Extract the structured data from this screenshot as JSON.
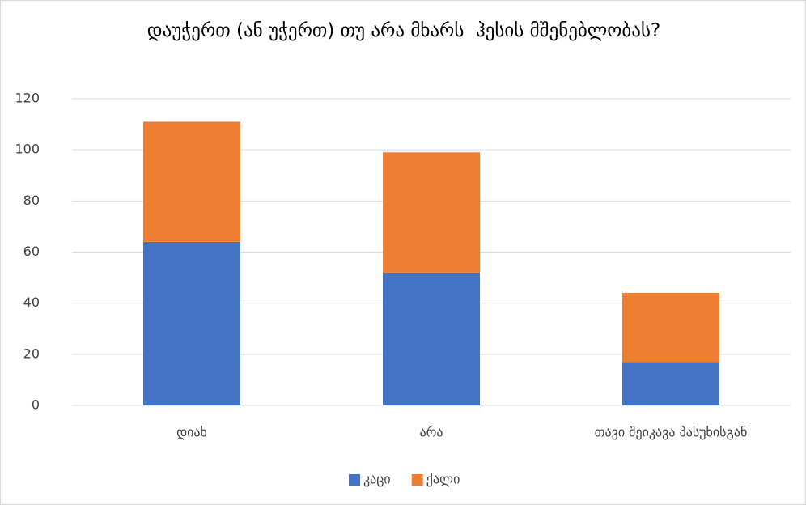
{
  "chart_data": {
    "type": "stacked_bar",
    "title": "დაუჭერთ (ან უჭერთ) თუ არა მხარს  ჰესის მშენებლობას?",
    "categories": [
      "დიახ",
      "არა",
      "თავი შეიკავა პასუხისგან"
    ],
    "series": [
      {
        "name": "კაცი",
        "color": "#4472c4",
        "values": [
          64,
          52,
          17
        ]
      },
      {
        "name": "ქალი",
        "color": "#ed7d31",
        "values": [
          47,
          47,
          27
        ]
      }
    ],
    "ylim": [
      0,
      120
    ],
    "yticks": [
      0,
      20,
      40,
      60,
      80,
      100,
      120
    ],
    "grid": true,
    "legend": "bottom"
  }
}
